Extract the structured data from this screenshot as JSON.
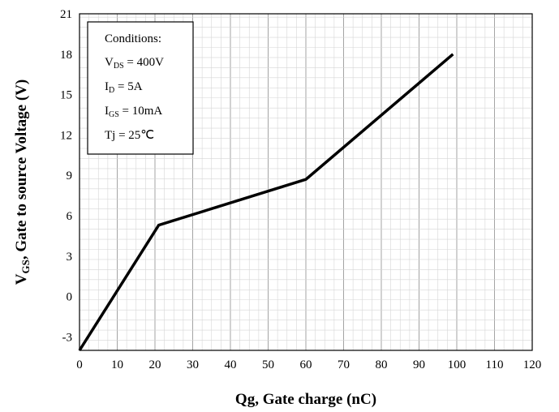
{
  "chart_data": {
    "type": "line",
    "xlabel": "Qg, Gate charge (nC)",
    "ylabel_prefix": "V",
    "ylabel_sub": "GS",
    "ylabel_rest": ", Gate to source Voltage (V)",
    "xlim": [
      0,
      120
    ],
    "ylim": [
      -4,
      21
    ],
    "x_ticks": [
      0,
      10,
      20,
      30,
      40,
      50,
      60,
      70,
      80,
      90,
      100,
      110,
      120
    ],
    "y_ticks": [
      -3,
      0,
      3,
      6,
      9,
      12,
      15,
      18,
      21
    ],
    "grid": true,
    "series": [
      {
        "color": "#000000",
        "x": [
          0,
          21,
          60,
          99
        ],
        "y": [
          -4,
          5.3,
          8.7,
          18
        ]
      }
    ],
    "conditions": {
      "title": "Conditions:",
      "lines": [
        {
          "main": "V",
          "sub": "DS",
          "rest": " = 400V"
        },
        {
          "main": "I",
          "sub": "D",
          "rest": " = 5A"
        },
        {
          "main": "I",
          "sub": "GS",
          "rest": " = 10mA"
        },
        {
          "main": "Tj = 25℃",
          "sub": "",
          "rest": ""
        }
      ]
    }
  }
}
